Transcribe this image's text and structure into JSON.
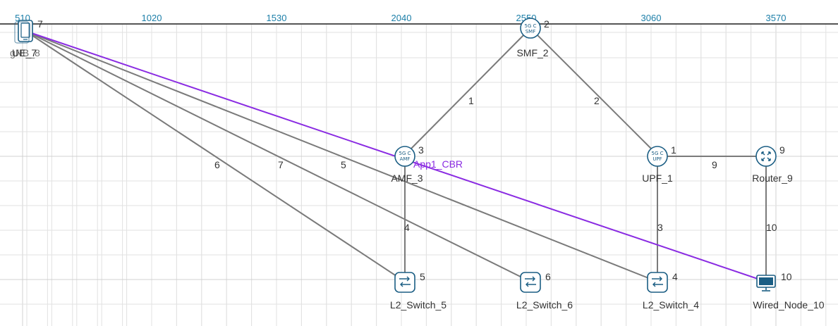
{
  "ruler": {
    "ticks": [
      "510",
      "1020",
      "1530",
      "2040",
      "2550",
      "3060",
      "3570"
    ]
  },
  "colors": {
    "link": "#7a7a7a",
    "app_flow": "#8a2be2",
    "icon_stroke": "#1b5e84",
    "ruler_text": "#1b7ea8"
  },
  "nodes": {
    "ue": {
      "label": "UE_7",
      "id_text": "7",
      "overlap_label": "gNB_8",
      "icon": "phone-icon"
    },
    "smf": {
      "label": "SMF_2",
      "id_text": "2",
      "icon_line1": "5G C",
      "icon_line2": "SMF"
    },
    "amf": {
      "label": "AMF_3",
      "id_text": "3",
      "icon_line1": "5G C",
      "icon_line2": "AMF"
    },
    "upf": {
      "label": "UPF_1",
      "id_text": "1",
      "icon_line1": "5G C",
      "icon_line2": "UPF"
    },
    "router": {
      "label": "Router_9",
      "id_text": "9",
      "icon": "router-icon"
    },
    "sw5": {
      "label": "L2_Switch_5",
      "id_text": "5",
      "icon": "switch-icon"
    },
    "sw6": {
      "label": "L2_Switch_6",
      "id_text": "6",
      "icon": "switch-icon"
    },
    "sw4": {
      "label": "L2_Switch_4",
      "id_text": "4",
      "icon": "switch-icon"
    },
    "wired": {
      "label": "Wired_Node_10",
      "id_text": "10",
      "icon": "monitor-icon"
    }
  },
  "links": {
    "l1": "1",
    "l2": "2",
    "l3": "3",
    "l4": "4",
    "l5": "5",
    "l6": "6",
    "l7": "7",
    "l9": "9",
    "l10": "10"
  },
  "application": {
    "label": "App1_CBR"
  }
}
